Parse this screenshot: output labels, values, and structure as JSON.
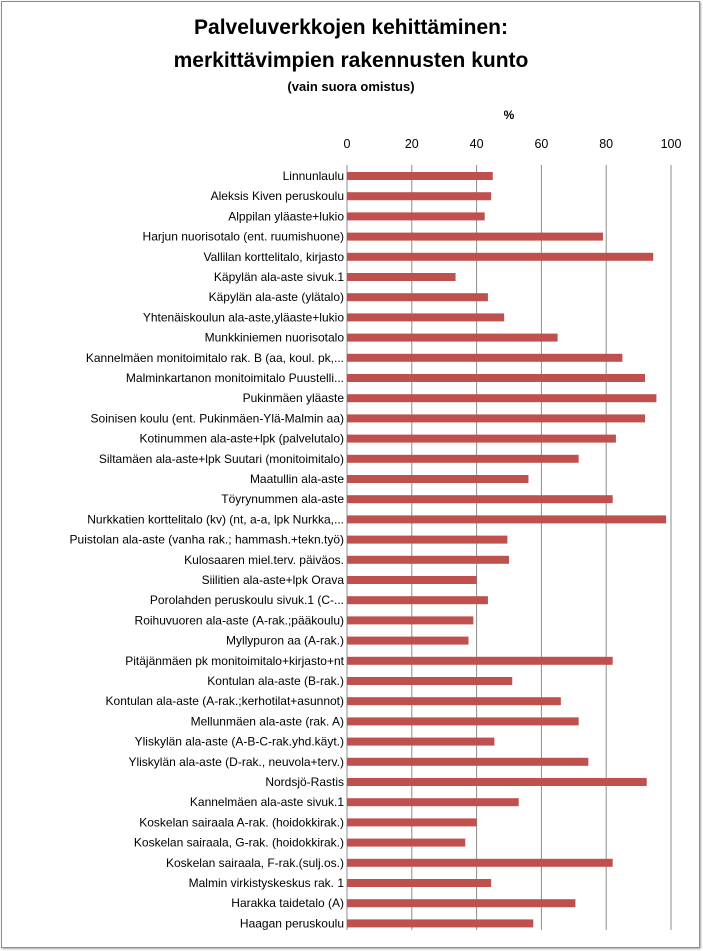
{
  "chart_data": {
    "type": "bar",
    "orientation": "horizontal",
    "title_line1": "Palveluverkkojen kehittäminen:",
    "title_line2": "merkittävimpien rakennusten kunto",
    "subtitle": "(vain suora omistus)",
    "xlabel": "%",
    "xlim": [
      0,
      100
    ],
    "xticks": [
      0,
      20,
      40,
      60,
      80,
      100
    ],
    "x_axis_position": "top",
    "grid": true,
    "legend": "none",
    "bar_color": "#c0504d",
    "categories": [
      "Linnunlaulu",
      "Aleksis Kiven peruskoulu",
      "Alppilan yläaste+lukio",
      "Harjun nuorisotalo (ent. ruumishuone)",
      "Vallilan korttelitalo, kirjasto",
      "Käpylän ala-aste sivuk.1",
      "Käpylän ala-aste (ylätalo)",
      "Yhtenäiskoulun ala-aste,yläaste+lukio",
      "Munkkiniemen nuorisotalo",
      "Kannelmäen monitoimitalo rak. B (aa, koul. pk,...",
      "Malminkartanon monitoimitalo Puustelli...",
      "Pukinmäen yläaste",
      "Soinisen koulu (ent. Pukinmäen-Ylä-Malmin aa)",
      "Kotinummen ala-aste+lpk (palvelutalo)",
      "Siltamäen ala-aste+lpk Suutari (monitoimitalo)",
      "Maatullin ala-aste",
      "Töyrynummen ala-aste",
      "Nurkkatien korttelitalo (kv) (nt, a-a, lpk Nurkka,...",
      "Puistolan ala-aste (vanha rak.; hammash.+tekn.työ)",
      "Kulosaaren miel.terv. päiväos.",
      "Siilitien ala-aste+lpk Orava",
      "Porolahden peruskoulu sivuk.1 (C-...",
      "Roihuvuoren ala-aste (A-rak.;pääkoulu)",
      "Myllypuron aa (A-rak.)",
      "Pitäjänmäen pk monitoimitalo+kirjasto+nt",
      "Kontulan ala-aste (B-rak.)",
      "Kontulan ala-aste (A-rak.;kerhotilat+asunnot)",
      "Mellunmäen ala-aste (rak. A)",
      "Yliskylän ala-aste (A-B-C-rak.yhd.käyt.)",
      "Yliskylän ala-aste (D-rak., neuvola+terv.)",
      "Nordsjö-Rastis",
      "Kannelmäen ala-aste sivuk.1",
      "Koskelan sairaala A-rak. (hoidokkirak.)",
      "Koskelan sairaala, G-rak. (hoidokkirak.)",
      "Koskelan sairaala, F-rak.(sulj.os.)",
      "Malmin virkistyskeskus rak. 1",
      "Harakka taidetalo (A)",
      "Haagan peruskoulu"
    ],
    "values": [
      45,
      44.5,
      42.5,
      79,
      94.5,
      33.5,
      43.5,
      48.5,
      65,
      85,
      92,
      95.5,
      92,
      83,
      71.5,
      56,
      82,
      98.5,
      49.5,
      50,
      40,
      43.5,
      39,
      37.5,
      82,
      51,
      66,
      71.5,
      45.5,
      74.5,
      92.5,
      53,
      40,
      36.5,
      82,
      44.5,
      70.5,
      57.5
    ]
  }
}
